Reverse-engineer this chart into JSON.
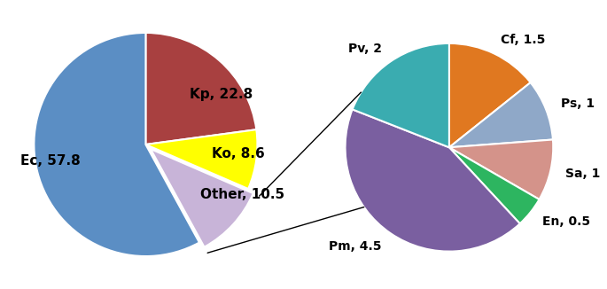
{
  "main_labels": [
    "Kp, 22.8",
    "Ko, 8.6",
    "Other, 10.5",
    "Ec, 57.8"
  ],
  "main_values": [
    22.8,
    8.6,
    10.5,
    57.8
  ],
  "main_colors": [
    "#a84040",
    "#ffff00",
    "#c8b4d8",
    "#5b8ec4"
  ],
  "main_startangle": 90,
  "main_explode": [
    0,
    0,
    0.06,
    0
  ],
  "sub_labels": [
    "Cf, 1.5",
    "Ps, 1",
    "Sa, 1",
    "En, 0.5",
    "Pm, 4.5",
    "Pv, 2"
  ],
  "sub_values": [
    1.5,
    1.0,
    1.0,
    0.5,
    4.5,
    2.0
  ],
  "sub_colors": [
    "#e07820",
    "#8fa8c8",
    "#d4938a",
    "#2db560",
    "#7a5fa0",
    "#3aacb0"
  ],
  "sub_startangle": 90,
  "font_size": 11,
  "font_weight": "bold",
  "sub_font_size": 10
}
